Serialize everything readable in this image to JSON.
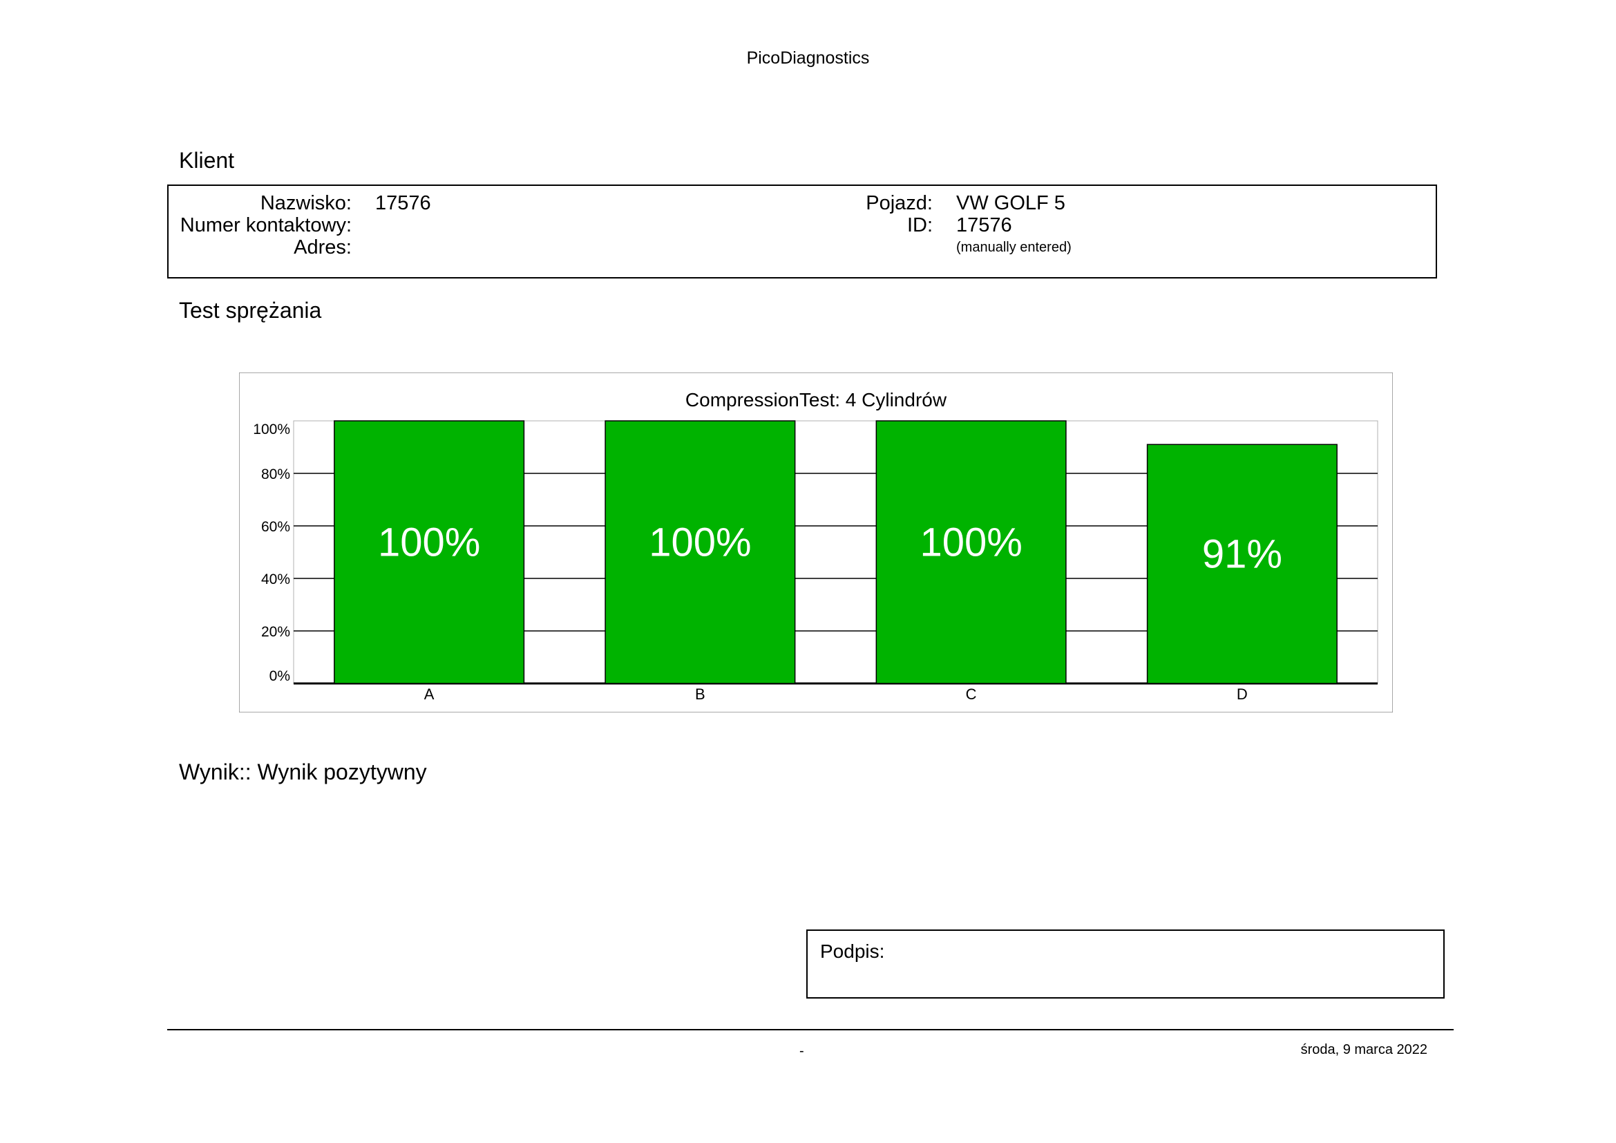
{
  "header": {
    "app_title": "PicoDiagnostics"
  },
  "client_section": {
    "title": "Klient",
    "name_label": "Nazwisko:",
    "name_value": "17576",
    "contact_label": "Numer kontaktowy:",
    "contact_value": "",
    "address_label": "Adres:",
    "address_value": "",
    "vehicle_label": "Pojazd:",
    "vehicle_value": "VW GOLF 5",
    "id_label": "ID:",
    "id_value": "17576",
    "id_note": "(manually entered)"
  },
  "test_section": {
    "title": "Test sprężania"
  },
  "chart_data": {
    "type": "bar",
    "title": "CompressionTest: 4 Cylindrów",
    "categories": [
      "A",
      "B",
      "C",
      "D"
    ],
    "values": [
      100,
      100,
      100,
      91
    ],
    "value_labels": [
      "100%",
      "100%",
      "100%",
      "91%"
    ],
    "y_ticks": [
      "0%",
      "20%",
      "40%",
      "60%",
      "80%",
      "100%"
    ],
    "ylim": [
      0,
      100
    ],
    "bar_color": "#00b300",
    "grid": true,
    "xlabel": "",
    "ylabel": ""
  },
  "result": {
    "text": "Wynik:: Wynik pozytywny"
  },
  "signature": {
    "label": "Podpis:"
  },
  "footer": {
    "center_text": "-",
    "date": "środa, 9 marca 2022"
  }
}
